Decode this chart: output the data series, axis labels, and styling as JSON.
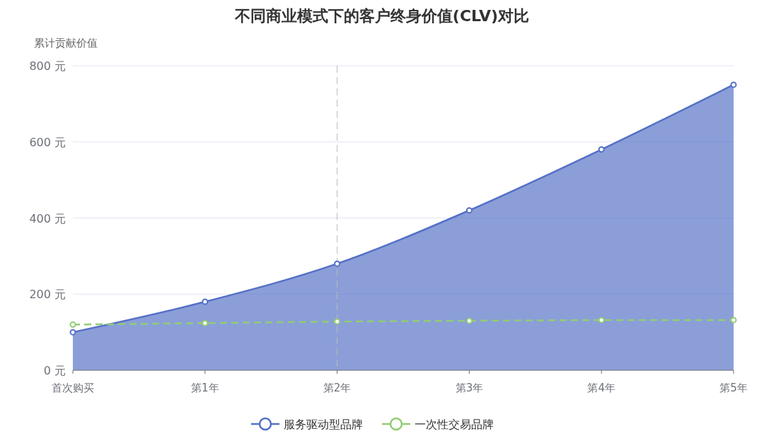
{
  "chart_data": {
    "type": "area",
    "title": "不同商业模式下的客户终身价值(CLV)对比",
    "ylabel": "累计贡献价值",
    "categories": [
      "首次购买",
      "第1年",
      "第2年",
      "第3年",
      "第4年",
      "第5年"
    ],
    "series": [
      {
        "name": "服务驱动型品牌",
        "color": "#5470c6",
        "values": [
          100,
          180,
          280,
          420,
          580,
          750
        ]
      },
      {
        "name": "一次性交易品牌",
        "type": "line",
        "color": "#91cc75",
        "line_style": "dashed",
        "values": [
          120,
          124,
          128,
          130,
          132,
          132
        ]
      }
    ],
    "ylim": [
      0,
      800
    ],
    "yticks": [
      {
        "value": 0,
        "label": "0 元"
      },
      {
        "value": 200,
        "label": "200 元"
      },
      {
        "value": 400,
        "label": "400 元"
      },
      {
        "value": 600,
        "label": "600 元"
      },
      {
        "value": 800,
        "label": "800 元"
      }
    ],
    "grid": "y",
    "legend": "bottom",
    "marker": "circle",
    "ref_lines": [
      {
        "axis": "x",
        "value": "第2年",
        "color": "#bbbbbb",
        "line_style": "dashed"
      }
    ]
  }
}
